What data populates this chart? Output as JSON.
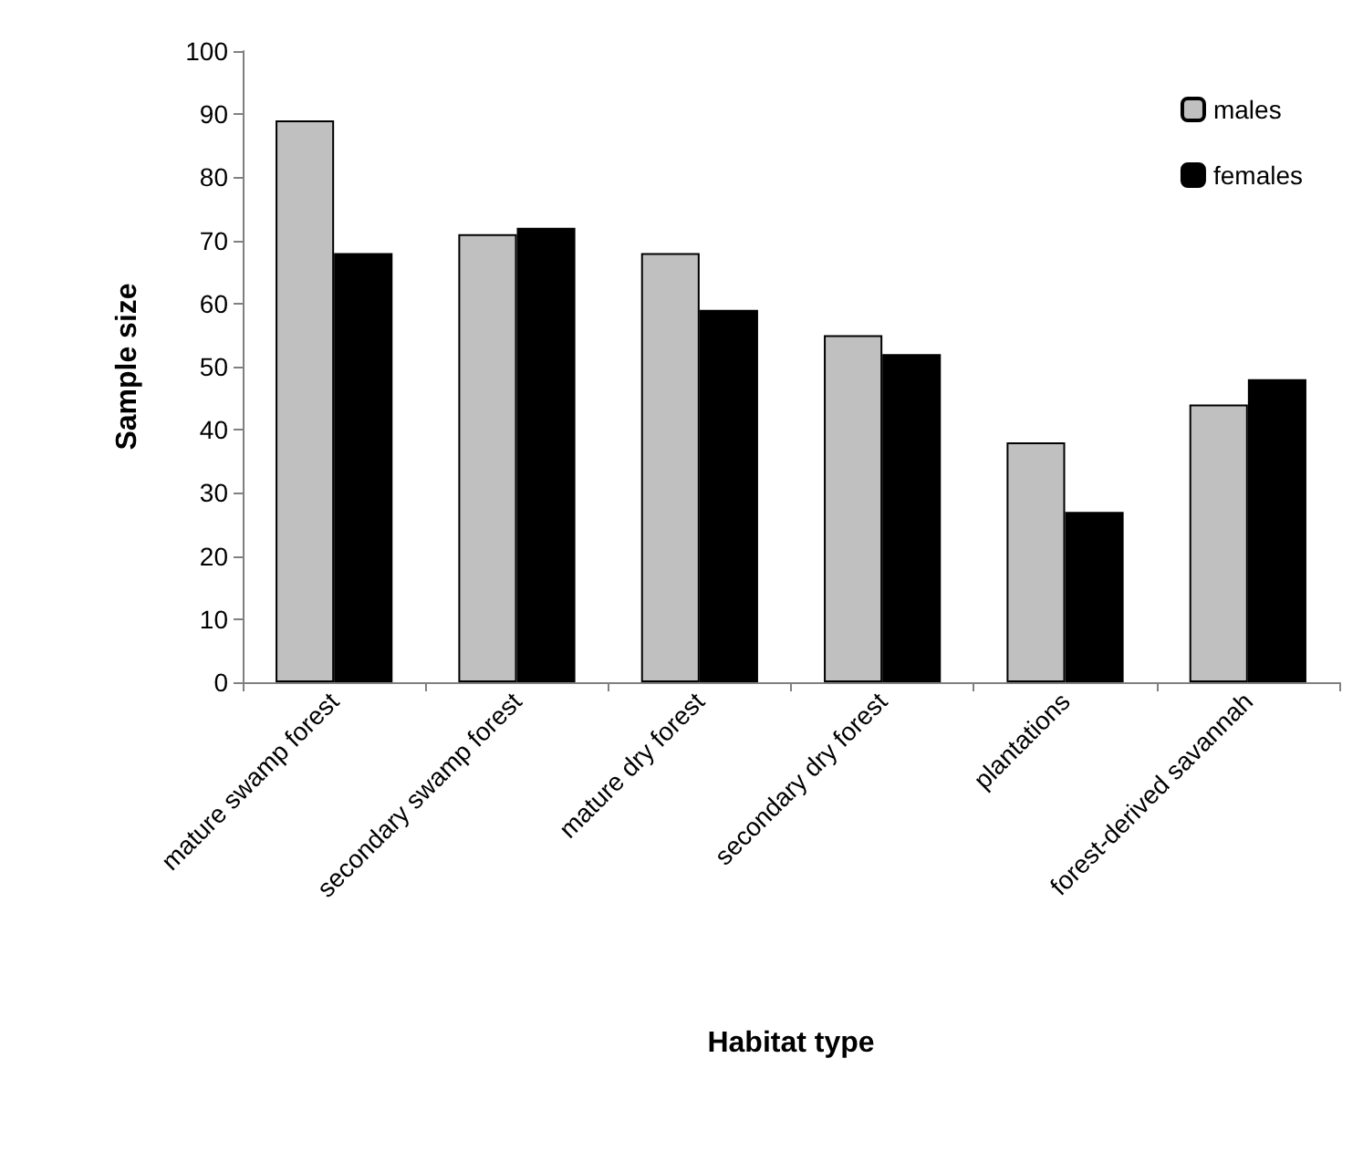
{
  "chart_data": {
    "type": "bar",
    "xlabel": "Habitat type",
    "ylabel": "Sample size",
    "categories": [
      "mature swamp forest",
      "secondary swamp forest",
      "mature dry forest",
      "secondary dry forest",
      "plantations",
      "forest-derived savannah"
    ],
    "series": [
      {
        "name": "males",
        "color": "#c0c0c0",
        "values": [
          89,
          71,
          68,
          55,
          38,
          44
        ]
      },
      {
        "name": "females",
        "color": "#000000",
        "values": [
          68,
          72,
          59,
          52,
          27,
          48
        ]
      }
    ],
    "ylim": [
      0,
      100
    ],
    "yticks": [
      0,
      10,
      20,
      30,
      40,
      50,
      60,
      70,
      80,
      90,
      100
    ],
    "grid": false,
    "legend": "top right"
  }
}
